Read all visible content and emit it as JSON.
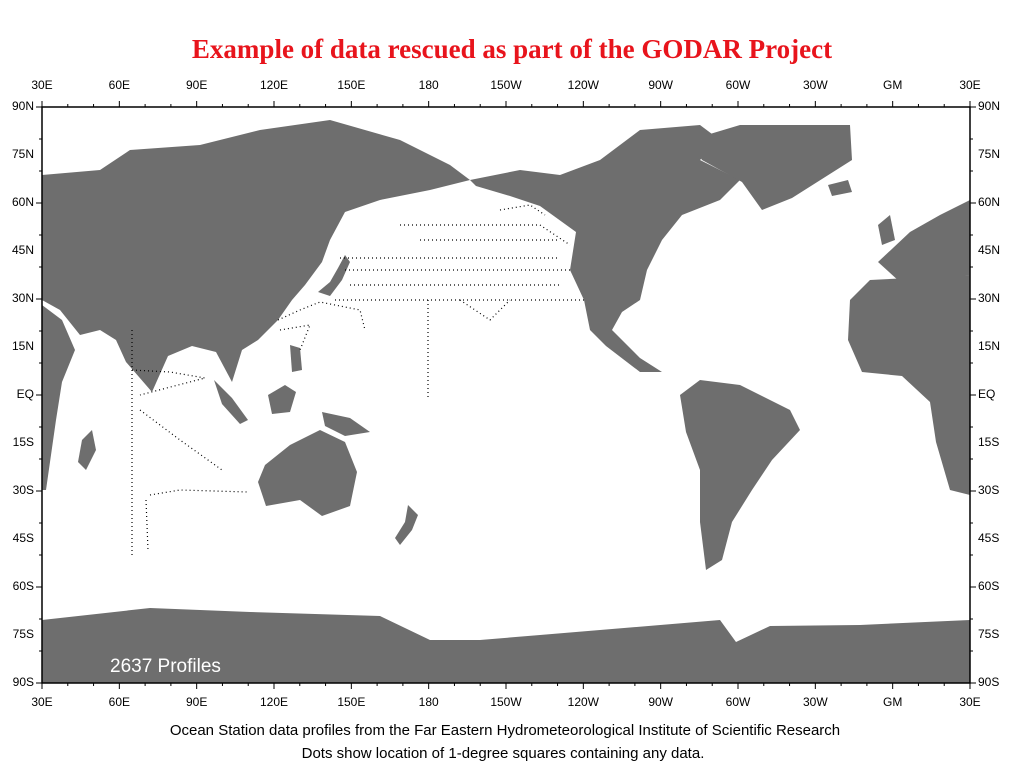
{
  "title": "Example of data rescued as part of the GODAR Project",
  "lon_labels": [
    "30E",
    "60E",
    "90E",
    "120E",
    "150E",
    "180",
    "150W",
    "120W",
    "90W",
    "60W",
    "30W",
    "GM",
    "30E"
  ],
  "lat_labels": [
    "90N",
    "75N",
    "60N",
    "45N",
    "30N",
    "15N",
    "EQ",
    "15S",
    "30S",
    "45S",
    "60S",
    "75S",
    "90S"
  ],
  "map_note": "2637 Profiles",
  "caption": [
    "Ocean Station data profiles from the Far Eastern Hydrometeorological Institute of Scientific Research",
    "Dots show location of 1-degree squares containing any data."
  ]
}
